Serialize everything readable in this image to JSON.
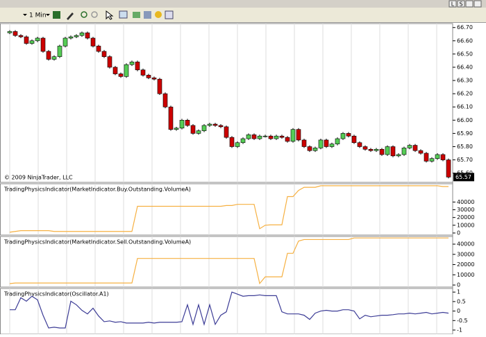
{
  "window_buttons": [
    "L",
    "S"
  ],
  "toolbar": {
    "interval": "1 Min"
  },
  "chart_data": [
    {
      "type": "candlestick",
      "annotation": "© 2009 NinjaTrader, LLC",
      "last_price": 65.57,
      "up_color": "#55cc55",
      "down_color": "#cc0000",
      "ylim": [
        65.53,
        66.73
      ],
      "yticks": [
        {
          "value": 66.7,
          "label": "66.70"
        },
        {
          "value": 66.6,
          "label": "66.60"
        },
        {
          "value": 66.5,
          "label": "66.50"
        },
        {
          "value": 66.4,
          "label": "66.40"
        },
        {
          "value": 66.3,
          "label": "66.30"
        },
        {
          "value": 66.2,
          "label": "66.20"
        },
        {
          "value": 66.1,
          "label": "66.10"
        },
        {
          "value": 66.0,
          "label": "66.00"
        },
        {
          "value": 65.9,
          "label": "65.90"
        },
        {
          "value": 65.8,
          "label": "65.80"
        },
        {
          "value": 65.7,
          "label": "65.70"
        },
        {
          "value": 65.6,
          "label": "65.60"
        }
      ],
      "open": [
        66.66,
        66.67,
        66.64,
        66.63,
        66.58,
        66.6,
        66.62,
        66.52,
        66.46,
        66.48,
        66.56,
        66.62,
        66.63,
        66.64,
        66.66,
        66.62,
        66.56,
        66.52,
        66.48,
        66.4,
        66.35,
        66.33,
        66.42,
        66.44,
        66.38,
        66.34,
        66.32,
        66.31,
        66.2,
        66.1,
        65.93,
        65.94,
        66.0,
        65.96,
        65.9,
        65.92,
        65.96,
        65.97,
        65.96,
        65.95,
        65.87,
        65.8,
        65.83,
        65.86,
        65.89,
        65.86,
        65.88,
        65.88,
        65.86,
        65.88,
        65.87,
        65.84,
        65.93,
        65.85,
        65.8,
        65.77,
        65.79,
        65.85,
        65.8,
        65.82,
        65.86,
        65.9,
        65.88,
        65.83,
        65.8,
        65.78,
        65.77,
        65.78,
        65.74,
        65.8,
        65.73,
        65.74,
        65.79,
        65.81,
        65.77,
        65.75,
        65.69,
        65.71,
        65.74,
        65.7
      ],
      "high": [
        66.68,
        66.68,
        66.65,
        66.64,
        66.61,
        66.63,
        66.63,
        66.53,
        66.49,
        66.57,
        66.63,
        66.64,
        66.65,
        66.67,
        66.67,
        66.63,
        66.57,
        66.53,
        66.49,
        66.41,
        66.36,
        66.43,
        66.45,
        66.45,
        66.39,
        66.35,
        66.33,
        66.32,
        66.21,
        66.11,
        65.95,
        66.01,
        66.01,
        65.97,
        65.93,
        65.97,
        65.98,
        65.98,
        65.97,
        65.96,
        65.88,
        65.84,
        65.87,
        65.9,
        65.9,
        65.89,
        65.89,
        65.89,
        65.89,
        65.89,
        65.88,
        65.94,
        65.94,
        65.86,
        65.81,
        65.8,
        65.86,
        65.86,
        65.83,
        65.87,
        65.91,
        65.91,
        65.89,
        65.84,
        65.81,
        65.79,
        65.79,
        65.79,
        65.81,
        65.81,
        65.75,
        65.8,
        65.82,
        65.82,
        65.78,
        65.76,
        65.72,
        65.75,
        65.75,
        65.71
      ],
      "low": [
        66.65,
        66.63,
        66.62,
        66.57,
        66.57,
        66.59,
        66.51,
        66.45,
        66.45,
        66.47,
        66.55,
        66.61,
        66.62,
        66.63,
        66.61,
        66.55,
        66.51,
        66.47,
        66.39,
        66.34,
        66.32,
        66.32,
        66.41,
        66.37,
        66.33,
        66.31,
        66.3,
        66.19,
        66.09,
        65.92,
        65.92,
        65.93,
        65.95,
        65.89,
        65.89,
        65.91,
        65.95,
        65.95,
        65.94,
        65.86,
        65.79,
        65.79,
        65.82,
        65.85,
        65.85,
        65.85,
        65.87,
        65.85,
        65.85,
        65.86,
        65.83,
        65.83,
        65.84,
        65.79,
        65.76,
        65.76,
        65.78,
        65.79,
        65.79,
        65.81,
        65.85,
        65.87,
        65.82,
        65.79,
        65.77,
        65.76,
        65.76,
        65.73,
        65.73,
        65.72,
        65.72,
        65.73,
        65.78,
        65.76,
        65.74,
        65.68,
        65.68,
        65.7,
        65.69,
        65.56
      ],
      "close": [
        66.67,
        66.64,
        66.63,
        66.58,
        66.6,
        66.62,
        66.52,
        66.46,
        66.48,
        66.56,
        66.62,
        66.63,
        66.64,
        66.66,
        66.62,
        66.56,
        66.52,
        66.48,
        66.4,
        66.35,
        66.33,
        66.42,
        66.44,
        66.38,
        66.34,
        66.32,
        66.31,
        66.2,
        66.1,
        65.93,
        65.94,
        66.0,
        65.96,
        65.9,
        65.92,
        65.96,
        65.97,
        65.96,
        65.95,
        65.87,
        65.8,
        65.83,
        65.86,
        65.89,
        65.86,
        65.88,
        65.88,
        65.86,
        65.88,
        65.87,
        65.84,
        65.93,
        65.85,
        65.8,
        65.77,
        65.79,
        65.85,
        65.8,
        65.82,
        65.86,
        65.9,
        65.88,
        65.83,
        65.8,
        65.78,
        65.77,
        65.78,
        65.74,
        65.8,
        65.73,
        65.74,
        65.79,
        65.81,
        65.77,
        65.75,
        65.69,
        65.71,
        65.74,
        65.7,
        65.57
      ]
    },
    {
      "type": "line",
      "title": "TradingPhysicsIndicator(MarketIndicator.Buy.Outstanding.VolumeA)",
      "color": "#f6b041",
      "ylim": [
        -2700,
        63600
      ],
      "yticks": [
        40000,
        30000,
        20000,
        10000,
        0
      ],
      "values": [
        1000,
        2000,
        3000,
        3000,
        3000,
        3000,
        3000,
        3000,
        2000,
        2000,
        2000,
        2000,
        2000,
        2000,
        2000,
        2000,
        2000,
        2000,
        2000,
        2000,
        2000,
        2000,
        2000,
        34500,
        34500,
        34500,
        34500,
        34500,
        34500,
        34500,
        34500,
        34500,
        34500,
        34500,
        34500,
        34500,
        34500,
        34500,
        34500,
        35500,
        35500,
        37000,
        37000,
        37000,
        37000,
        5500,
        10000,
        10500,
        10500,
        10500,
        47000,
        47000,
        55000,
        59000,
        59000,
        59000,
        61000,
        61000,
        61000,
        61000,
        61000,
        61000,
        61000,
        61000,
        61000,
        61000,
        61000,
        61000,
        61000,
        61000,
        61000,
        61000,
        61000,
        61000,
        61000,
        61000,
        61000,
        61000,
        60000,
        60000
      ]
    },
    {
      "type": "line",
      "title": "TradingPhysicsIndicator(MarketIndicator.Sell.Outstanding.VolumeA)",
      "color": "#f6b041",
      "ylim": [
        -2000,
        47500
      ],
      "yticks": [
        40000,
        30000,
        20000,
        10000,
        0
      ],
      "values": [
        1400,
        2000,
        2000,
        2000,
        2000,
        2000,
        2000,
        2000,
        2000,
        2000,
        2000,
        2000,
        2000,
        2000,
        2000,
        2000,
        2000,
        2000,
        2000,
        2000,
        2000,
        2000,
        2000,
        26000,
        26000,
        26000,
        26000,
        26000,
        26000,
        26000,
        26000,
        26000,
        26000,
        26000,
        26000,
        26000,
        26000,
        26000,
        26000,
        26000,
        26000,
        26000,
        26000,
        26000,
        26000,
        1500,
        8000,
        8000,
        8000,
        8000,
        31000,
        31000,
        43000,
        44500,
        44500,
        44500,
        44500,
        44500,
        44500,
        44500,
        44500,
        44500,
        46000,
        46000,
        46000,
        46000,
        46000,
        46000,
        46000,
        46000,
        46000,
        46000,
        46000,
        46000,
        46000,
        46000,
        46000,
        46000,
        46000,
        46000
      ]
    },
    {
      "type": "line",
      "title": "TradingPhysicsIndicator(Oscillator.A1)",
      "color": "#3c3c96",
      "ylim": [
        -1.22,
        1.19
      ],
      "yticks": [
        1,
        0.5,
        0,
        -0.5,
        -1
      ],
      "values": [
        0.07,
        0.07,
        0.7,
        0.52,
        0.78,
        0.59,
        -0.22,
        -0.89,
        -0.85,
        -0.89,
        -0.89,
        0.52,
        0.33,
        0.04,
        -0.15,
        0.15,
        -0.26,
        -0.56,
        -0.52,
        -0.59,
        -0.56,
        -0.63,
        -0.63,
        -0.63,
        -0.63,
        -0.59,
        -0.63,
        -0.59,
        -0.59,
        -0.59,
        -0.59,
        -0.56,
        0.33,
        -0.7,
        0.33,
        -0.7,
        0.33,
        -0.7,
        -0.22,
        -0.04,
        1.0,
        0.89,
        0.78,
        0.81,
        0.81,
        0.85,
        0.81,
        0.81,
        0.81,
        -0.04,
        -0.15,
        -0.15,
        -0.15,
        -0.22,
        -0.44,
        -0.11,
        0,
        0.04,
        0,
        0,
        0.07,
        0.07,
        0,
        -0.41,
        -0.22,
        -0.3,
        -0.26,
        -0.22,
        -0.22,
        -0.19,
        -0.15,
        -0.15,
        -0.11,
        -0.15,
        -0.11,
        -0.07,
        -0.15,
        -0.11,
        -0.07,
        -0.11
      ]
    }
  ]
}
